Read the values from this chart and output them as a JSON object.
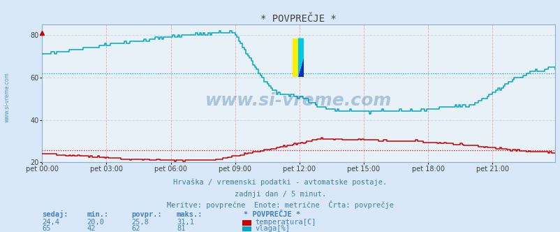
{
  "title": "* POVPREČJE *",
  "background_color": "#d8e8f8",
  "plot_bg_color": "#e8f0f8",
  "grid_color_h": "#c8d8f0",
  "grid_color_v": "#e8a8a8",
  "ylim": [
    20,
    85
  ],
  "yticks": [
    20,
    40,
    60,
    80
  ],
  "xtick_labels": [
    "pet 00:00",
    "pet 03:00",
    "pet 06:00",
    "pet 09:00",
    "pet 12:00",
    "pet 15:00",
    "pet 18:00",
    "pet 21:00"
  ],
  "num_points": 288,
  "temp_color": "#cc0000",
  "hum_color": "#00a8c8",
  "avg_temp": 25.8,
  "avg_hum": 62,
  "watermark": "www.si-vreme.com",
  "watermark_color": "#2060a0",
  "footer_line1": "Hrvaška / vremenski podatki - avtomatske postaje.",
  "footer_line2": "zadnji dan / 5 minut.",
  "footer_line3": "Meritve: povprečne  Enote: metrične  Črta: povprečje",
  "footer_color": "#4080a0",
  "table_headers": [
    "sedaj:",
    "min.:",
    "povpr.:",
    "maks.:"
  ],
  "table_temp": [
    "24,4",
    "20,0",
    "25,8",
    "31,1"
  ],
  "table_hum": [
    "65",
    "42",
    "62",
    "81"
  ],
  "legend_title": "* POVPREČJE *",
  "legend_temp": "temperatura[C]",
  "legend_hum": "vlaga[%]",
  "table_color": "#4080c0",
  "sidebar_color": "#4080c0"
}
